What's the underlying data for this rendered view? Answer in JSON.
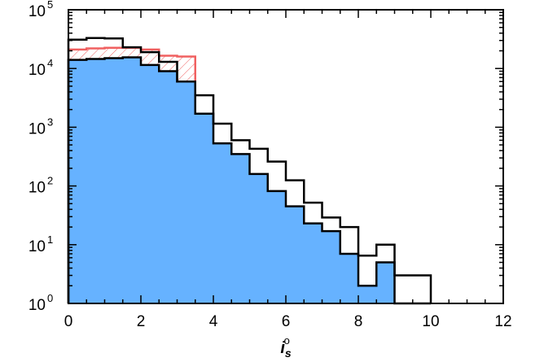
{
  "chart_data": {
    "type": "bar",
    "xlabel": "i",
    "xlabel_sub": "s",
    "xlabel_sup": "o",
    "xlim": [
      0,
      12
    ],
    "ylim": [
      1,
      100000
    ],
    "yscale": "log",
    "bin_width": 0.5,
    "bin_edges": [
      0,
      0.5,
      1,
      1.5,
      2,
      2.5,
      3,
      3.5,
      4,
      4.5,
      5,
      5.5,
      6,
      6.5,
      7,
      7.5,
      8,
      8.5,
      9,
      9.5,
      10
    ],
    "series": [
      {
        "style": "filled",
        "values": [
          14000,
          14500,
          15000,
          15500,
          11500,
          9000,
          6000,
          1700,
          530,
          350,
          160,
          82,
          45,
          23,
          17,
          7,
          2,
          5,
          1,
          1
        ]
      },
      {
        "style": "black-outline",
        "values": [
          31000,
          33000,
          32500,
          23000,
          19000,
          13000,
          6000,
          3500,
          1150,
          600,
          430,
          260,
          125,
          52,
          29,
          20,
          6.5,
          10,
          3,
          3
        ]
      },
      {
        "style": "red-hatched-outline",
        "values": [
          21000,
          22000,
          22500,
          22500,
          21000,
          16500,
          16000
        ]
      }
    ],
    "x_ticks": [
      {
        "value": 0,
        "label": "0"
      },
      {
        "value": 2,
        "label": "2"
      },
      {
        "value": 4,
        "label": "4"
      },
      {
        "value": 6,
        "label": "6"
      },
      {
        "value": 8,
        "label": "8"
      },
      {
        "value": 10,
        "label": "10"
      },
      {
        "value": 12,
        "label": "12"
      }
    ],
    "y_ticks": [
      {
        "value": 1,
        "base": "10",
        "exp": "0"
      },
      {
        "value": 10,
        "base": "10",
        "exp": "1"
      },
      {
        "value": 100,
        "base": "10",
        "exp": "2"
      },
      {
        "value": 1000,
        "base": "10",
        "exp": "3"
      },
      {
        "value": 10000,
        "base": "10",
        "exp": "4"
      },
      {
        "value": 100000,
        "base": "10",
        "exp": "5"
      }
    ],
    "grid": false,
    "colors": {
      "fill": "#66b2ff",
      "outline": "#000000",
      "red": "#f06060",
      "axis": "#000000"
    }
  }
}
